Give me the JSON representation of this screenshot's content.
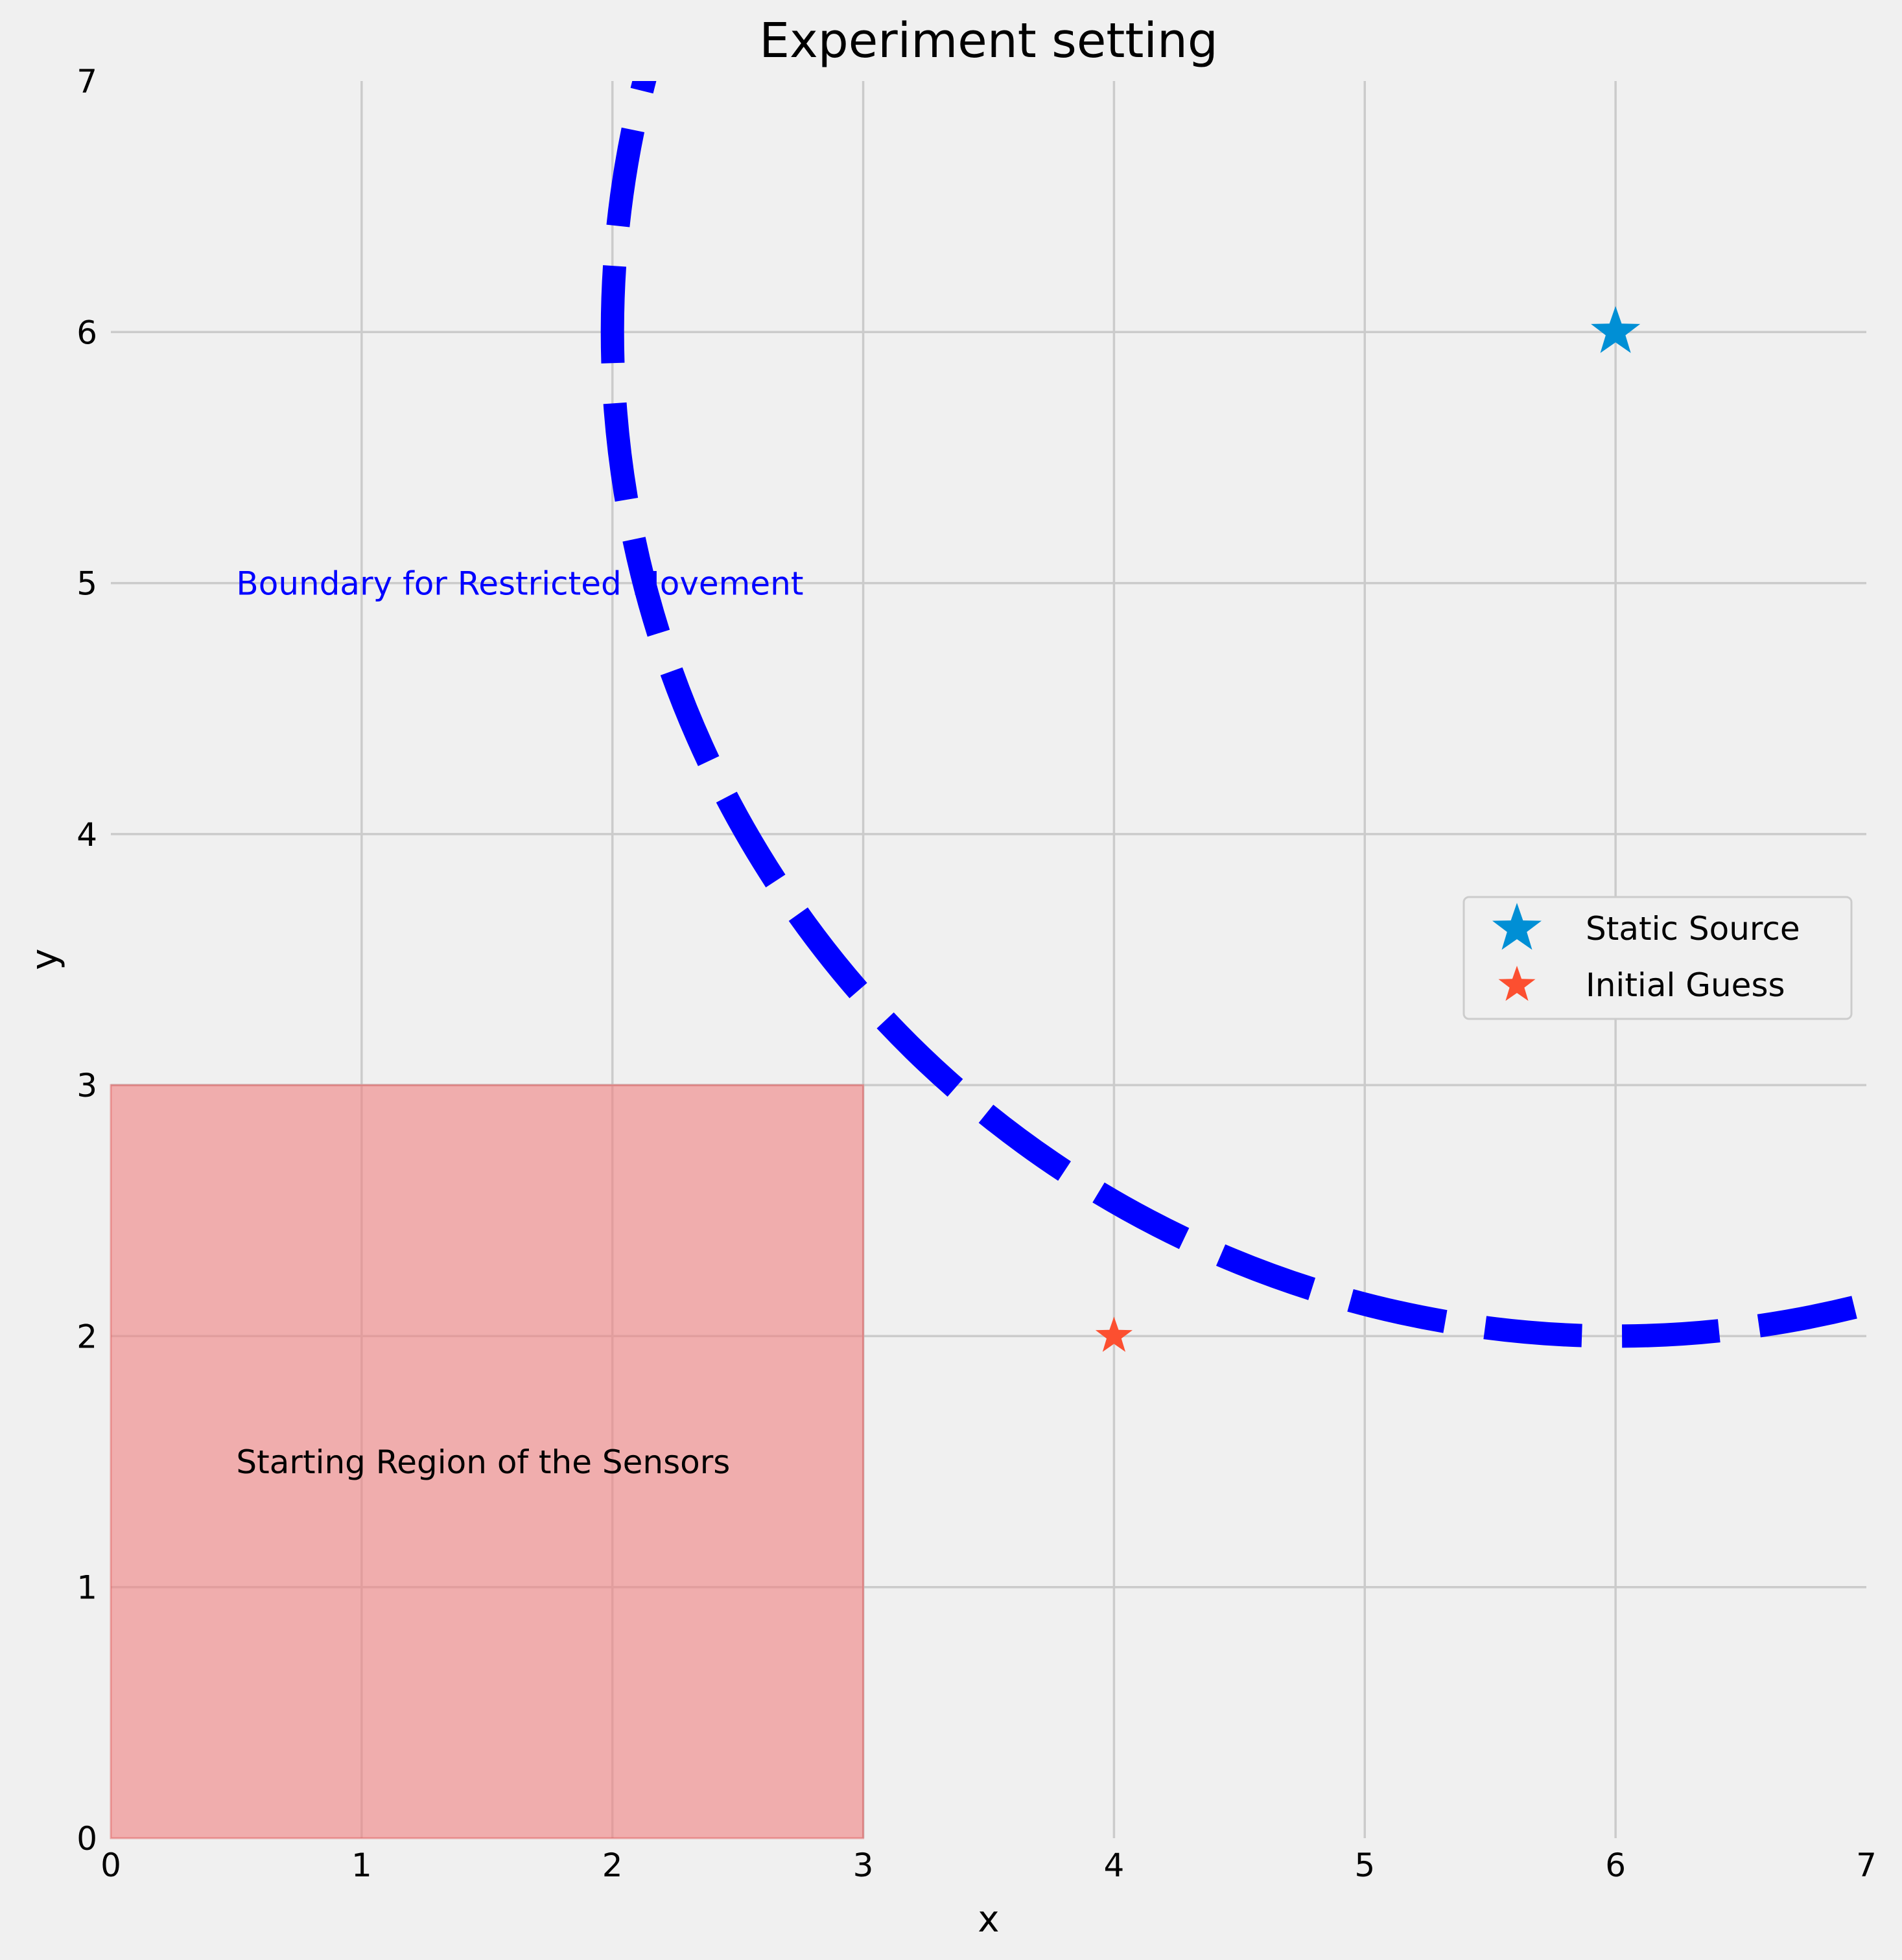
{
  "chart_data": {
    "type": "scatter",
    "title": "Experiment setting",
    "xlabel": "x",
    "ylabel": "y",
    "xlim": [
      0,
      7
    ],
    "ylim": [
      0,
      7
    ],
    "xticks": [
      "0",
      "1",
      "2",
      "3",
      "4",
      "5",
      "6",
      "7"
    ],
    "yticks": [
      "0",
      "1",
      "2",
      "3",
      "4",
      "5",
      "6",
      "7"
    ],
    "grid": true,
    "legend_position": "center-right",
    "series": [
      {
        "name": "Static Source",
        "marker": "star",
        "color": "#008fd5",
        "points": [
          [
            6,
            6
          ]
        ]
      },
      {
        "name": "Initial Guess",
        "marker": "star",
        "color": "#fc4f30",
        "points": [
          [
            4,
            2
          ]
        ]
      }
    ],
    "boundary": {
      "shape": "circle-arc",
      "center": [
        6,
        6
      ],
      "radius": 4,
      "style": "dashed",
      "color": "#0000ff"
    },
    "region": {
      "x": [
        0,
        3
      ],
      "y": [
        0,
        3
      ],
      "color": "#f08080"
    },
    "annotations": [
      {
        "text": "Boundary for Restricted Movement",
        "x": 0.5,
        "y": 5.0,
        "color": "#0000ff"
      },
      {
        "text": "Starting Region of the Sensors",
        "x": 0.5,
        "y": 1.5,
        "color": "#000000"
      }
    ]
  }
}
